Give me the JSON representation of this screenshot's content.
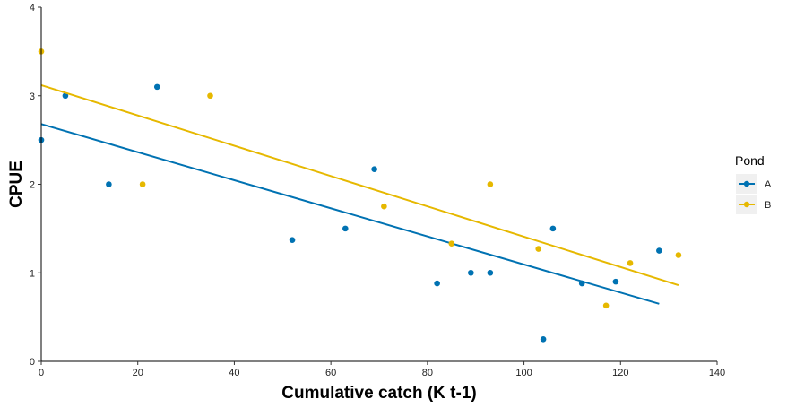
{
  "chart_data": {
    "type": "scatter",
    "xlabel": "Cumulative catch (K t-1)",
    "ylabel": "CPUE",
    "xlim": [
      0,
      140
    ],
    "ylim": [
      0,
      4
    ],
    "x_ticks": [
      "0",
      "20",
      "40",
      "60",
      "80",
      "100",
      "120",
      "140"
    ],
    "y_ticks": [
      "0",
      "1",
      "2",
      "3",
      "4"
    ],
    "grid": false,
    "legend": {
      "title": "Pond",
      "position": "right",
      "entries": [
        "A",
        "B"
      ]
    },
    "series": [
      {
        "name": "A",
        "color": "#0072B2",
        "points": [
          [
            0,
            2.5
          ],
          [
            5,
            3.0
          ],
          [
            14,
            2.0
          ],
          [
            24,
            3.1
          ],
          [
            52,
            1.37
          ],
          [
            63,
            1.5
          ],
          [
            69,
            2.17
          ],
          [
            82,
            0.88
          ],
          [
            89,
            1.0
          ],
          [
            93,
            1.0
          ],
          [
            104,
            0.25
          ],
          [
            106,
            1.5
          ],
          [
            112,
            0.88
          ],
          [
            119,
            0.9
          ],
          [
            128,
            1.25
          ]
        ],
        "trend": [
          [
            0,
            2.68
          ],
          [
            128,
            0.65
          ]
        ]
      },
      {
        "name": "B",
        "color": "#E6B800",
        "points": [
          [
            0,
            3.5
          ],
          [
            21,
            2.0
          ],
          [
            35,
            3.0
          ],
          [
            71,
            1.75
          ],
          [
            85,
            1.33
          ],
          [
            93,
            2.0
          ],
          [
            103,
            1.27
          ],
          [
            117,
            0.63
          ],
          [
            122,
            1.11
          ],
          [
            132,
            1.2
          ]
        ],
        "trend": [
          [
            0,
            3.12
          ],
          [
            132,
            0.86
          ]
        ]
      }
    ]
  }
}
